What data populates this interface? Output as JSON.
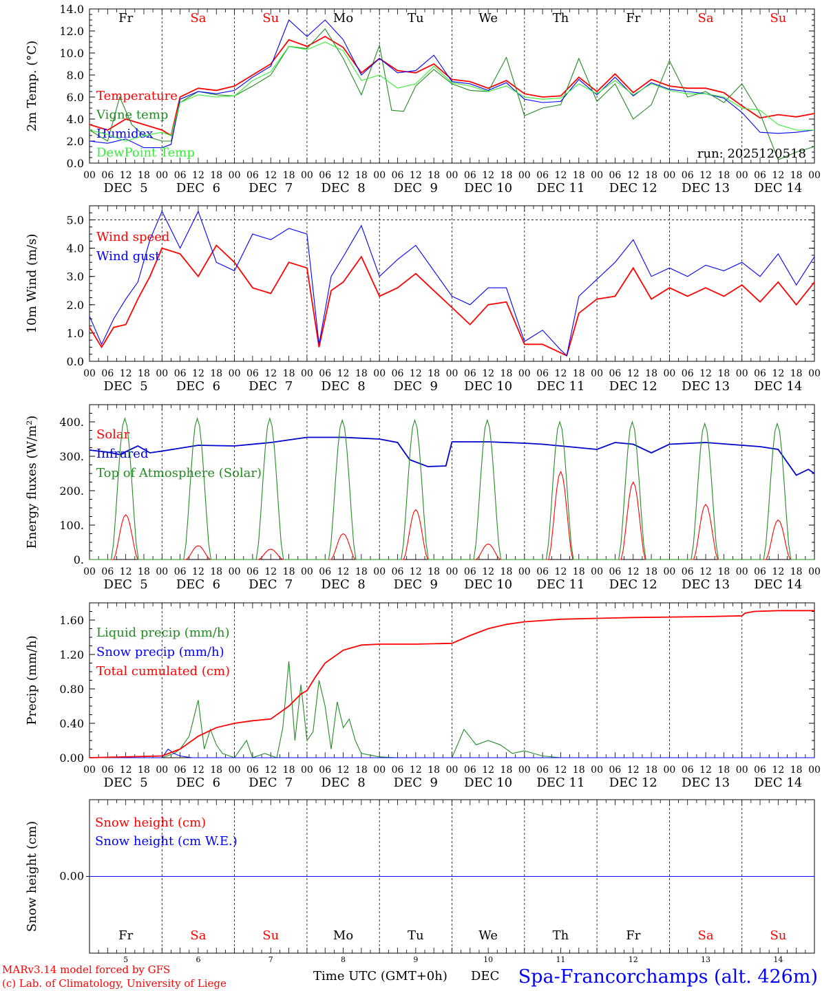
{
  "footer": {
    "credit_line1": "MARv3.14 model forced by GFS",
    "credit_line2": "(c) Lab. of Climatology, University of Liege",
    "axis_title": "Time UTC (GMT+0h)",
    "axis_title_extra": "DEC",
    "station": "Spa-Francorchamps (alt. 426m)"
  },
  "colors": {
    "red": "#ff0000",
    "green": "#228b22",
    "blue": "#0000ff",
    "lime": "#33ee33",
    "navy": "#0000cc"
  },
  "days": {
    "weekday_labels": [
      "Fr",
      "Sa",
      "Su",
      "Mo",
      "Tu",
      "We",
      "Th",
      "Fr",
      "Sa",
      "Su"
    ],
    "weekend": [
      false,
      true,
      true,
      false,
      false,
      false,
      false,
      false,
      true,
      true
    ],
    "date_labels": [
      "DEC  5",
      "DEC  6",
      "DEC  7",
      "DEC  8",
      "DEC  9",
      "DEC 10",
      "DEC 11",
      "DEC 12",
      "DEC 13",
      "DEC 14"
    ],
    "day_numbers": [
      "5",
      "6",
      "7",
      "8",
      "9",
      "10",
      "11",
      "12",
      "13",
      "14"
    ],
    "hour_ticks": [
      "00",
      "06",
      "12",
      "18"
    ],
    "hour_end": "00"
  },
  "chart_data": [
    {
      "type": "line",
      "id": "temperature",
      "ylabel": "2m Temp. (°C)",
      "ylim": [
        0,
        14
      ],
      "yticks": [
        "0.0",
        "2.0",
        "4.0",
        "6.0",
        "8.0",
        "10.0",
        "12.0",
        "14.0"
      ],
      "x_unit": "hours since DEC 5 00 UTC",
      "annotation": "run: 2025120518",
      "series": [
        {
          "name": "Temperature",
          "color": "#ff0000",
          "x": [
            0,
            6,
            12,
            18,
            24,
            27,
            30,
            36,
            42,
            48,
            54,
            60,
            66,
            72,
            78,
            84,
            90,
            96,
            102,
            108,
            114,
            120,
            126,
            132,
            138,
            144,
            150,
            156,
            162,
            168,
            174,
            180,
            186,
            192,
            198,
            204,
            210,
            216,
            222,
            228,
            234,
            240
          ],
          "values": [
            3.5,
            3.0,
            4.0,
            3.5,
            3.0,
            2.5,
            6.0,
            6.8,
            6.6,
            7.0,
            8.0,
            9.0,
            11.2,
            10.6,
            11.5,
            10.5,
            8.2,
            9.5,
            8.4,
            8.2,
            9.0,
            7.6,
            7.4,
            6.8,
            7.5,
            6.3,
            6.0,
            6.1,
            7.8,
            6.5,
            8.1,
            6.4,
            7.6,
            7.0,
            6.8,
            6.8,
            6.4,
            5.2,
            4.1,
            4.4,
            4.2,
            4.5
          ]
        },
        {
          "name": "Vigne temp",
          "color": "#228b22",
          "x": [
            0,
            6,
            10,
            14,
            18,
            24,
            27,
            30,
            36,
            42,
            48,
            54,
            60,
            66,
            72,
            78,
            84,
            90,
            96,
            100,
            104,
            108,
            114,
            120,
            126,
            132,
            138,
            144,
            150,
            156,
            162,
            168,
            174,
            180,
            186,
            192,
            198,
            204,
            210,
            216,
            222,
            228,
            234,
            240
          ],
          "values": [
            3.0,
            2.0,
            6.0,
            3.5,
            2.5,
            2.0,
            2.0,
            5.5,
            6.5,
            6.2,
            6.1,
            7.0,
            8.0,
            10.6,
            10.4,
            12.2,
            9.5,
            6.2,
            10.7,
            4.8,
            4.7,
            7.0,
            8.5,
            7.2,
            6.6,
            6.5,
            9.6,
            4.3,
            5.0,
            5.3,
            9.5,
            5.6,
            7.2,
            4.0,
            5.3,
            9.3,
            6.0,
            6.5,
            5.5,
            7.2,
            4.5,
            0.3,
            1.0,
            1.5
          ]
        },
        {
          "name": "Humidex",
          "color": "#0000ff",
          "x": [
            0,
            6,
            12,
            18,
            24,
            27,
            30,
            36,
            42,
            48,
            54,
            60,
            66,
            72,
            78,
            84,
            90,
            96,
            102,
            108,
            114,
            120,
            126,
            132,
            138,
            144,
            150,
            156,
            162,
            168,
            174,
            180,
            186,
            192,
            198,
            204,
            210,
            216,
            222,
            228,
            234,
            240
          ],
          "values": [
            2.0,
            1.8,
            2.2,
            1.4,
            1.4,
            1.7,
            5.8,
            6.5,
            6.3,
            6.6,
            7.8,
            8.8,
            13.0,
            11.5,
            13.0,
            11.2,
            8.0,
            9.5,
            8.2,
            8.4,
            9.8,
            7.4,
            7.2,
            6.6,
            7.3,
            5.8,
            5.5,
            5.6,
            7.6,
            6.2,
            7.8,
            6.1,
            7.3,
            6.7,
            6.5,
            6.3,
            5.9,
            4.6,
            2.8,
            2.7,
            2.8,
            3.0
          ]
        },
        {
          "name": "DewPoint Temp",
          "color": "#33ee33",
          "x": [
            0,
            6,
            12,
            18,
            24,
            27,
            30,
            36,
            42,
            48,
            54,
            60,
            66,
            72,
            78,
            84,
            90,
            96,
            102,
            108,
            114,
            120,
            126,
            132,
            138,
            144,
            150,
            156,
            162,
            168,
            174,
            180,
            186,
            192,
            198,
            204,
            210,
            216,
            222,
            228,
            234,
            240
          ],
          "values": [
            3.0,
            2.6,
            2.0,
            2.5,
            2.8,
            2.5,
            5.5,
            6.2,
            6.0,
            6.1,
            7.5,
            8.3,
            10.6,
            10.3,
            11.0,
            10.2,
            7.5,
            8.0,
            6.8,
            7.2,
            8.8,
            7.3,
            7.0,
            6.5,
            7.0,
            6.0,
            5.8,
            5.9,
            7.2,
            6.3,
            7.5,
            6.2,
            7.2,
            6.6,
            6.3,
            6.3,
            6.0,
            5.0,
            4.8,
            3.5,
            3.0,
            3.0
          ]
        }
      ]
    },
    {
      "type": "line",
      "id": "wind",
      "ylabel": "10m Wind (m/s)",
      "ylim": [
        0,
        5.5
      ],
      "yticks": [
        "0.0",
        "1.0",
        "2.0",
        "3.0",
        "4.0",
        "5.0"
      ],
      "x_unit": "hours since DEC 5 00 UTC",
      "reference_line": 5.0,
      "series": [
        {
          "name": "Wind speed",
          "color": "#ff0000",
          "x": [
            0,
            4,
            8,
            12,
            16,
            20,
            24,
            30,
            36,
            42,
            48,
            54,
            60,
            66,
            72,
            76,
            80,
            84,
            90,
            96,
            102,
            108,
            114,
            120,
            126,
            132,
            138,
            144,
            150,
            156,
            158,
            162,
            168,
            174,
            180,
            186,
            192,
            198,
            204,
            210,
            216,
            222,
            228,
            234,
            240
          ],
          "values": [
            1.2,
            0.5,
            1.2,
            1.3,
            2.2,
            3.0,
            4.0,
            3.8,
            3.0,
            4.1,
            3.5,
            2.6,
            2.4,
            3.5,
            3.3,
            0.5,
            2.5,
            2.8,
            3.7,
            2.3,
            2.6,
            3.1,
            2.5,
            1.9,
            1.3,
            2.0,
            2.1,
            0.6,
            0.6,
            0.3,
            0.2,
            1.7,
            2.2,
            2.3,
            3.3,
            2.2,
            2.6,
            2.3,
            2.6,
            2.3,
            2.7,
            2.1,
            2.8,
            2.0,
            2.8
          ]
        },
        {
          "name": "Wind gust",
          "color": "#0000ff",
          "x": [
            0,
            4,
            8,
            12,
            16,
            20,
            24,
            30,
            36,
            42,
            48,
            54,
            60,
            66,
            72,
            76,
            80,
            84,
            90,
            96,
            102,
            108,
            114,
            120,
            126,
            132,
            138,
            144,
            150,
            156,
            158,
            162,
            168,
            174,
            180,
            186,
            192,
            198,
            204,
            210,
            216,
            222,
            228,
            234,
            240
          ],
          "values": [
            1.6,
            0.6,
            1.5,
            2.2,
            2.8,
            4.3,
            5.3,
            4.0,
            5.3,
            3.5,
            3.2,
            4.5,
            4.3,
            4.7,
            4.5,
            0.6,
            3.0,
            3.7,
            4.8,
            3.0,
            3.6,
            4.1,
            3.2,
            2.3,
            2.0,
            2.6,
            2.6,
            0.7,
            1.1,
            0.4,
            0.2,
            2.3,
            2.9,
            3.5,
            4.3,
            3.0,
            3.3,
            3.0,
            3.4,
            3.2,
            3.5,
            3.0,
            3.8,
            2.7,
            3.7
          ]
        }
      ]
    },
    {
      "type": "line",
      "id": "energy",
      "ylabel": "Energy fluxes (W/m²)",
      "ylim": [
        0,
        450
      ],
      "yticks": [
        "0.",
        "100.",
        "200.",
        "300.",
        "400."
      ],
      "x_unit": "hours since DEC 5 00 UTC",
      "series": [
        {
          "name": "Solar",
          "color": "#ff0000",
          "daily_peaks": [
            130,
            40,
            30,
            75,
            145,
            45,
            255,
            225,
            160,
            115
          ],
          "sunrise_hour": 8,
          "noon_hour": 12.5,
          "sunset_hour": 16
        },
        {
          "name": "Infrared",
          "color": "#0000cc",
          "x": [
            0,
            6,
            10,
            16,
            20,
            24,
            36,
            48,
            60,
            72,
            84,
            96,
            102,
            106,
            112,
            118,
            120,
            132,
            144,
            150,
            156,
            168,
            174,
            180,
            186,
            192,
            204,
            216,
            222,
            228,
            234,
            238,
            240
          ],
          "values": [
            318,
            312,
            305,
            330,
            310,
            315,
            332,
            330,
            340,
            355,
            355,
            350,
            340,
            290,
            270,
            272,
            342,
            342,
            338,
            335,
            330,
            320,
            340,
            335,
            310,
            335,
            340,
            332,
            328,
            320,
            245,
            262,
            250
          ]
        },
        {
          "name": "Top of Atmosphere (Solar)",
          "color": "#228b22",
          "daily_peaks": [
            410,
            410,
            410,
            405,
            405,
            405,
            400,
            400,
            395,
            395
          ],
          "sunrise_hour": 7.2,
          "noon_hour": 12.5,
          "sunset_hour": 16.2
        }
      ]
    },
    {
      "type": "line",
      "id": "precip",
      "ylabel": "Precip (mm/h)",
      "ylim": [
        0,
        1.8
      ],
      "yticks": [
        "0.00",
        "0.40",
        "0.80",
        "1.20",
        "1.60"
      ],
      "x_unit": "hours since DEC 5 00 UTC",
      "series": [
        {
          "name": "Liquid precip (mm/h)",
          "color": "#228b22",
          "x": [
            0,
            24,
            28,
            30,
            33,
            36,
            38,
            40,
            42,
            44,
            48,
            52,
            54,
            58,
            62,
            64,
            66,
            68,
            70,
            72,
            74,
            76,
            78,
            80,
            82,
            84,
            86,
            88,
            90,
            96,
            102,
            120,
            124,
            128,
            132,
            136,
            140,
            144,
            150,
            156,
            240
          ],
          "values": [
            0,
            0,
            0.05,
            0.1,
            0.25,
            0.67,
            0.1,
            0.33,
            0.15,
            0.05,
            0,
            0.2,
            0,
            0.05,
            0,
            0.35,
            1.12,
            0.2,
            0.85,
            0.2,
            0.3,
            0.9,
            0.6,
            0.1,
            0.65,
            0.35,
            0.45,
            0.2,
            0.05,
            0.01,
            0,
            0,
            0.33,
            0.15,
            0.2,
            0.15,
            0.05,
            0.08,
            0.02,
            0,
            0
          ]
        },
        {
          "name": "Snow precip (mm/h)",
          "color": "#0000ff",
          "x": [
            0,
            24,
            26,
            28,
            30,
            34,
            36,
            240
          ],
          "values": [
            0,
            0,
            0.1,
            0.05,
            0.02,
            0,
            0,
            0
          ]
        },
        {
          "name": "Total cumulated (cm)",
          "color": "#ff0000",
          "x": [
            0,
            24,
            30,
            36,
            42,
            48,
            54,
            60,
            66,
            70,
            72,
            75,
            78,
            84,
            90,
            96,
            102,
            108,
            120,
            126,
            132,
            138,
            144,
            156,
            168,
            180,
            204,
            216,
            217,
            220,
            228,
            240
          ],
          "values": [
            0,
            0.02,
            0.1,
            0.25,
            0.35,
            0.4,
            0.43,
            0.45,
            0.6,
            0.74,
            0.78,
            0.95,
            1.1,
            1.25,
            1.31,
            1.32,
            1.32,
            1.32,
            1.33,
            1.42,
            1.5,
            1.55,
            1.58,
            1.61,
            1.62,
            1.63,
            1.64,
            1.65,
            1.68,
            1.7,
            1.71,
            1.71
          ]
        }
      ]
    },
    {
      "type": "line",
      "id": "snow",
      "ylabel": "Snow height (cm)",
      "ylim": [
        -1,
        1
      ],
      "yticks": [
        "0.00"
      ],
      "x_unit": "hours since DEC 5 00 UTC",
      "series": [
        {
          "name": "Snow height (cm)",
          "color": "#ff0000",
          "x": [
            0,
            240
          ],
          "values": [
            0,
            0
          ]
        },
        {
          "name": "Snow height (cm W.E.)",
          "color": "#0000ff",
          "x": [
            0,
            240
          ],
          "values": [
            0,
            0
          ]
        }
      ]
    }
  ]
}
